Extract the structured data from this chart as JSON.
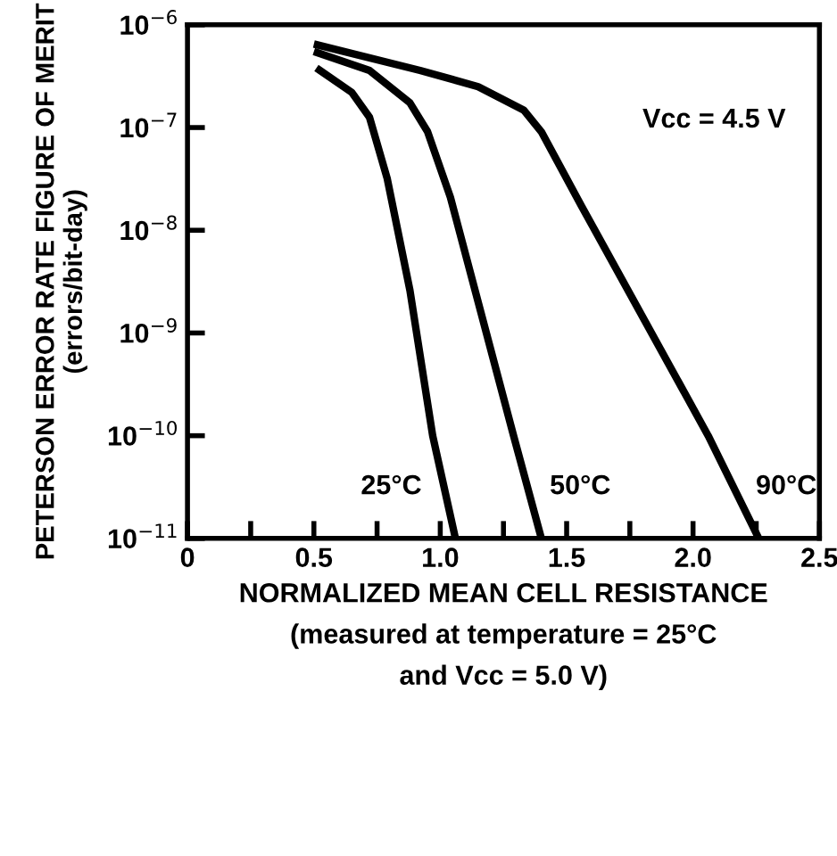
{
  "chart_data": {
    "type": "line",
    "xlabel": "NORMALIZED MEAN CELL RESISTANCE\n(measured at temperature = 25°C\nand Vcc = 5.0 V)",
    "ylabel": "PETERSON ERROR RATE FIGURE OF MERIT\n(errors/bit-day)",
    "log": "y",
    "xlim": [
      0,
      2.5
    ],
    "ylim": [
      1e-11,
      1e-06
    ],
    "xticks": [
      0,
      {
        "value": 0.25,
        "label": null
      },
      {
        "value": 0.5,
        "label": "0.5"
      },
      {
        "value": 0.75,
        "label": null
      },
      {
        "value": 1.0,
        "label": "1.0"
      },
      {
        "value": 1.25,
        "label": null
      },
      {
        "value": 1.5,
        "label": "1.5"
      },
      {
        "value": 1.75,
        "label": null
      },
      {
        "value": 2.0,
        "label": "2.0"
      },
      {
        "value": 2.25,
        "label": null
      },
      {
        "value": 2.5,
        "label": "2.5"
      }
    ],
    "yticks": [
      {
        "value": 1e-11,
        "label": "10$^{−11}$"
      },
      {
        "value": 1e-10,
        "label": "10$^{−10}$"
      },
      {
        "value": 1e-09,
        "label": "10$^{−9}$"
      },
      {
        "value": 1e-08,
        "label": "10$^{−8}$"
      },
      {
        "value": 1e-07,
        "label": "10$^{−7}$"
      },
      {
        "value": 1e-06,
        "label": "10$^{−6}$"
      }
    ],
    "grid": false,
    "legend": false,
    "marker": "none",
    "line_style": "solid",
    "annotations": [
      "Vcc = 4.5 V"
    ],
    "series": [
      {
        "name": "25°C",
        "color": "#000000",
        "x": [
          0.51,
          0.65,
          0.72,
          0.79,
          0.88,
          0.97,
          1.06
        ],
        "values": [
          3.8e-07,
          2.2e-07,
          1.26e-07,
          3.2e-08,
          2.6e-09,
          1e-10,
          1e-11
        ]
      },
      {
        "name": "50°C",
        "color": "#000000",
        "x": [
          0.5,
          0.72,
          0.88,
          0.95,
          1.04,
          1.29,
          1.4
        ],
        "values": [
          5.5e-07,
          3.6e-07,
          1.74e-07,
          9.1e-08,
          2.1e-08,
          1e-10,
          1e-11
        ]
      },
      {
        "name": "90°C",
        "color": "#000000",
        "x": [
          0.5,
          0.92,
          1.15,
          1.33,
          1.4,
          1.56,
          2.06,
          2.26
        ],
        "values": [
          6.5e-07,
          3.6e-07,
          2.5e-07,
          1.48e-07,
          9.1e-08,
          1.7e-08,
          1e-10,
          1e-11
        ]
      }
    ]
  }
}
